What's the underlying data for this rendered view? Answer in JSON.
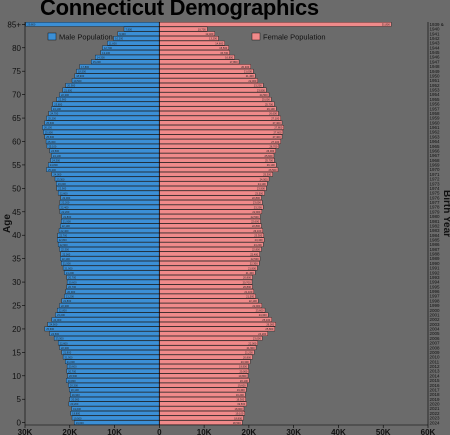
{
  "chart_data": {
    "type": "bar",
    "title": "Connecticut Demographics",
    "xlabel": "",
    "ylabel": "Age",
    "y2label": "Birth Year",
    "xlim": [
      -30000,
      60000
    ],
    "x_ticks": [
      {
        "value": -30000,
        "label": "30K"
      },
      {
        "value": -20000,
        "label": "20K"
      },
      {
        "value": -10000,
        "label": "10K"
      },
      {
        "value": 0,
        "label": "0"
      },
      {
        "value": 10000,
        "label": "10K"
      },
      {
        "value": 20000,
        "label": "20K"
      },
      {
        "value": 30000,
        "label": "30K"
      },
      {
        "value": 40000,
        "label": "40K"
      },
      {
        "value": 50000,
        "label": "50K"
      },
      {
        "value": 60000,
        "label": "60K"
      }
    ],
    "age_ticks": [
      {
        "value": 0,
        "label": "0"
      },
      {
        "value": 5,
        "label": "5"
      },
      {
        "value": 10,
        "label": "10"
      },
      {
        "value": 15,
        "label": "15"
      },
      {
        "value": 20,
        "label": "20"
      },
      {
        "value": 25,
        "label": "25"
      },
      {
        "value": 30,
        "label": "30"
      },
      {
        "value": 35,
        "label": "35"
      },
      {
        "value": 40,
        "label": "40"
      },
      {
        "value": 45,
        "label": "45"
      },
      {
        "value": 50,
        "label": "50"
      },
      {
        "value": 55,
        "label": "55"
      },
      {
        "value": 60,
        "label": "60"
      },
      {
        "value": 65,
        "label": "65"
      },
      {
        "value": 70,
        "label": "70"
      },
      {
        "value": 75,
        "label": "75"
      },
      {
        "value": 80,
        "label": "80"
      },
      {
        "value": 85,
        "label": "85+"
      }
    ],
    "birth_years": [
      "2024",
      "2023",
      "2022",
      "2021",
      "2020",
      "2019",
      "2018",
      "2017",
      "2016",
      "2015",
      "2014",
      "2013",
      "2012",
      "2011",
      "2010",
      "2009",
      "2008",
      "2007",
      "2006",
      "2005",
      "2004",
      "2003",
      "2002",
      "2001",
      "2000",
      "1999",
      "1998",
      "1997",
      "1996",
      "1995",
      "1994",
      "1993",
      "1992",
      "1991",
      "1990",
      "1989",
      "1988",
      "1987",
      "1986",
      "1985",
      "1984",
      "1983",
      "1982",
      "1981",
      "1980",
      "1979",
      "1978",
      "1977",
      "1976",
      "1975",
      "1974",
      "1973",
      "1972",
      "1971",
      "1970",
      "1969",
      "1968",
      "1967",
      "1966",
      "1965",
      "1964",
      "1963",
      "1962",
      "1961",
      "1960",
      "1959",
      "1958",
      "1957",
      "1956",
      "1955",
      "1954",
      "1953",
      "1952",
      "1951",
      "1950",
      "1949",
      "1948",
      "1947",
      "1946",
      "1945",
      "1944",
      "1943",
      "1942",
      "1941",
      "1940",
      "1939 &"
    ],
    "series": [
      {
        "name": "Male Population",
        "color": "#3b8fd6",
        "values": [
          19000,
          19500,
          19800,
          19600,
          20200,
          20000,
          19900,
          20100,
          20300,
          20800,
          20500,
          20700,
          20600,
          21000,
          21500,
          21800,
          22300,
          22600,
          23500,
          24500,
          25600,
          24900,
          24000,
          23200,
          22800,
          22300,
          21800,
          21200,
          20900,
          20700,
          20600,
          20700,
          21200,
          21500,
          21900,
          22100,
          22000,
          22300,
          22600,
          22800,
          22700,
          22400,
          22100,
          21900,
          21800,
          22200,
          22400,
          22200,
          22000,
          22600,
          22900,
          23000,
          23300,
          24000,
          25200,
          24800,
          24300,
          24100,
          24500,
          25100,
          25300,
          25600,
          25900,
          26100,
          25600,
          25200,
          24700,
          24100,
          23800,
          22900,
          22300,
          21600,
          20900,
          19500,
          18900,
          18500,
          17800,
          15200,
          14300,
          13100,
          12700,
          11600,
          10200,
          9300,
          7900,
          29800
        ]
      },
      {
        "name": "Female Population",
        "color": "#f08a8a",
        "values": [
          18500,
          18800,
          19100,
          18900,
          19500,
          19300,
          19200,
          19400,
          19600,
          20100,
          19800,
          20000,
          19900,
          20300,
          20800,
          21200,
          21600,
          22000,
          23000,
          24200,
          25800,
          26000,
          25100,
          24300,
          23600,
          22900,
          22100,
          21500,
          21100,
          20800,
          20700,
          20800,
          21400,
          21900,
          22300,
          22500,
          22400,
          22800,
          23200,
          23400,
          23300,
          23100,
          22800,
          22600,
          22500,
          22900,
          23200,
          23000,
          22800,
          23500,
          23900,
          24100,
          24500,
          25300,
          26500,
          26100,
          25700,
          25600,
          26000,
          26700,
          27100,
          27400,
          27600,
          27800,
          27400,
          27100,
          26600,
          26100,
          25700,
          25000,
          24500,
          23900,
          23200,
          22000,
          21400,
          21000,
          20400,
          17800,
          16800,
          15700,
          15500,
          14600,
          13200,
          12400,
          10700,
          51800
        ]
      }
    ],
    "legend_position": "top",
    "colors": {
      "background": "#6b6b6b",
      "male": "#3b8fd6",
      "female": "#f08a8a",
      "grid": "#000000"
    }
  }
}
